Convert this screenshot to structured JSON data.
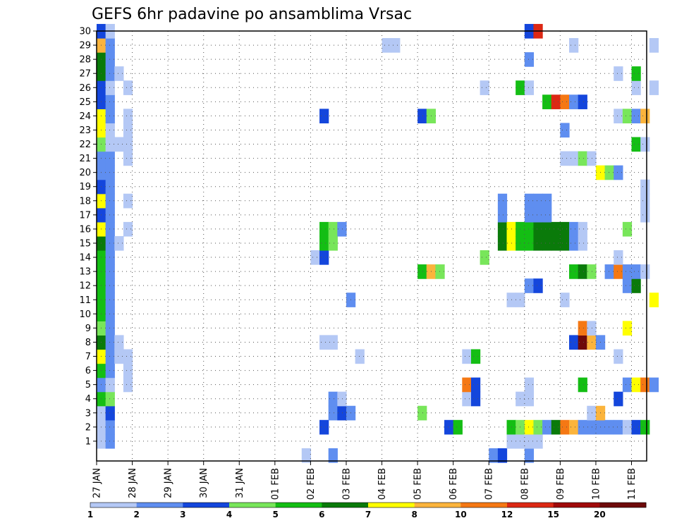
{
  "chart_data": {
    "type": "heatmap",
    "title": "GEFS 6hr padavine po ansamblima Vrsac",
    "y_ticks": [
      "1",
      "2",
      "3",
      "4",
      "5",
      "6",
      "7",
      "8",
      "9",
      "10",
      "11",
      "12",
      "13",
      "14",
      "15",
      "16",
      "17",
      "18",
      "19",
      "20",
      "21",
      "22",
      "23",
      "24",
      "25",
      "26",
      "27",
      "28",
      "29",
      "30"
    ],
    "x_ticks": [
      "27 JAN",
      "28 JAN",
      "29 JAN",
      "30 JAN",
      "31 JAN",
      "01 FEB",
      "02 FEB",
      "03 FEB",
      "04 FEB",
      "05 FEB",
      "06 FEB",
      "07 FEB",
      "08 FEB",
      "09 FEB",
      "10 FEB",
      "11 FEB"
    ],
    "x_range": [
      0,
      60
    ],
    "y_range": [
      0,
      30
    ],
    "colorbar": {
      "labels": [
        "1",
        "2",
        "3",
        "4",
        "5",
        "6",
        "7",
        "8",
        "10",
        "12",
        "15",
        "20"
      ],
      "colors": [
        "#b4c8f5",
        "#5f8ef0",
        "#1446dc",
        "#78e65a",
        "#14be14",
        "#0a7a0a",
        "#ffff00",
        "#fbb43c",
        "#f57814",
        "#dc2814",
        "#a00a0a",
        "#6e0a0a"
      ]
    },
    "cells": [
      [
        0,
        1,
        1
      ],
      [
        0,
        2,
        1
      ],
      [
        0,
        3,
        1
      ],
      [
        0,
        4,
        5
      ],
      [
        0,
        5,
        2
      ],
      [
        0,
        6,
        5
      ],
      [
        0,
        7,
        7
      ],
      [
        0,
        8,
        6
      ],
      [
        0,
        9,
        4
      ],
      [
        0,
        10,
        5
      ],
      [
        0,
        11,
        5
      ],
      [
        0,
        12,
        5
      ],
      [
        0,
        13,
        5
      ],
      [
        0,
        14,
        5
      ],
      [
        0,
        15,
        6
      ],
      [
        0,
        16,
        7
      ],
      [
        0,
        17,
        3
      ],
      [
        0,
        18,
        7
      ],
      [
        0,
        19,
        3
      ],
      [
        0,
        20,
        2
      ],
      [
        0,
        21,
        2
      ],
      [
        0,
        22,
        4
      ],
      [
        0,
        23,
        7
      ],
      [
        0,
        24,
        7
      ],
      [
        0,
        25,
        3
      ],
      [
        0,
        26,
        3
      ],
      [
        0,
        27,
        6
      ],
      [
        0,
        28,
        6
      ],
      [
        0,
        29,
        8
      ],
      [
        0,
        30,
        3
      ],
      [
        1,
        1,
        2
      ],
      [
        1,
        2,
        2
      ],
      [
        1,
        3,
        3
      ],
      [
        1,
        4,
        4
      ],
      [
        1,
        5,
        1
      ],
      [
        1,
        6,
        2
      ],
      [
        1,
        7,
        2
      ],
      [
        1,
        8,
        2
      ],
      [
        1,
        9,
        2
      ],
      [
        1,
        10,
        2
      ],
      [
        1,
        11,
        2
      ],
      [
        1,
        12,
        2
      ],
      [
        1,
        13,
        2
      ],
      [
        1,
        14,
        2
      ],
      [
        1,
        15,
        2
      ],
      [
        1,
        16,
        2
      ],
      [
        1,
        17,
        2
      ],
      [
        1,
        18,
        2
      ],
      [
        1,
        19,
        2
      ],
      [
        1,
        20,
        2
      ],
      [
        1,
        21,
        2
      ],
      [
        1,
        22,
        1
      ],
      [
        1,
        23,
        1
      ],
      [
        1,
        24,
        2
      ],
      [
        1,
        25,
        2
      ],
      [
        1,
        26,
        1
      ],
      [
        1,
        27,
        2
      ],
      [
        1,
        28,
        2
      ],
      [
        1,
        29,
        2
      ],
      [
        1,
        30,
        1
      ],
      [
        2,
        7,
        1
      ],
      [
        2,
        8,
        1
      ],
      [
        2,
        15,
        1
      ],
      [
        2,
        22,
        1
      ],
      [
        2,
        27,
        1
      ],
      [
        3,
        5,
        1
      ],
      [
        3,
        6,
        1
      ],
      [
        3,
        7,
        1
      ],
      [
        3,
        16,
        1
      ],
      [
        3,
        18,
        1
      ],
      [
        3,
        21,
        1
      ],
      [
        3,
        22,
        1
      ],
      [
        3,
        23,
        1
      ],
      [
        3,
        24,
        1
      ],
      [
        3,
        26,
        1
      ],
      [
        23,
        0,
        1
      ],
      [
        24,
        14,
        1
      ],
      [
        25,
        2,
        3
      ],
      [
        25,
        8,
        1
      ],
      [
        25,
        14,
        3
      ],
      [
        25,
        15,
        5
      ],
      [
        25,
        16,
        5
      ],
      [
        25,
        24,
        3
      ],
      [
        26,
        0,
        2
      ],
      [
        26,
        3,
        2
      ],
      [
        26,
        4,
        2
      ],
      [
        26,
        8,
        1
      ],
      [
        26,
        15,
        4
      ],
      [
        26,
        16,
        4
      ],
      [
        27,
        3,
        3
      ],
      [
        27,
        4,
        1
      ],
      [
        27,
        16,
        2
      ],
      [
        28,
        3,
        2
      ],
      [
        28,
        11,
        2
      ],
      [
        29,
        7,
        1
      ],
      [
        32,
        29,
        1
      ],
      [
        33,
        29,
        1
      ],
      [
        36,
        3,
        4
      ],
      [
        36,
        13,
        5
      ],
      [
        36,
        24,
        3
      ],
      [
        37,
        13,
        8
      ],
      [
        37,
        24,
        4
      ],
      [
        38,
        13,
        4
      ],
      [
        39,
        2,
        3
      ],
      [
        40,
        2,
        5
      ],
      [
        41,
        4,
        1
      ],
      [
        41,
        5,
        9
      ],
      [
        41,
        7,
        1
      ],
      [
        42,
        4,
        3
      ],
      [
        42,
        5,
        3
      ],
      [
        42,
        7,
        5
      ],
      [
        43,
        14,
        4
      ],
      [
        43,
        26,
        1
      ],
      [
        44,
        0,
        2
      ],
      [
        45,
        0,
        3
      ],
      [
        45,
        15,
        6
      ],
      [
        45,
        16,
        6
      ],
      [
        45,
        17,
        2
      ],
      [
        45,
        18,
        2
      ],
      [
        46,
        1,
        1
      ],
      [
        46,
        2,
        5
      ],
      [
        46,
        15,
        7
      ],
      [
        46,
        16,
        7
      ],
      [
        46,
        11,
        1
      ],
      [
        47,
        1,
        1
      ],
      [
        47,
        2,
        4
      ],
      [
        47,
        4,
        1
      ],
      [
        47,
        11,
        1
      ],
      [
        47,
        15,
        5
      ],
      [
        47,
        16,
        5
      ],
      [
        47,
        26,
        5
      ],
      [
        48,
        0,
        2
      ],
      [
        48,
        1,
        1
      ],
      [
        48,
        2,
        7
      ],
      [
        48,
        4,
        1
      ],
      [
        48,
        5,
        1
      ],
      [
        48,
        12,
        2
      ],
      [
        48,
        15,
        5
      ],
      [
        48,
        16,
        5
      ],
      [
        48,
        18,
        2
      ],
      [
        48,
        17,
        2
      ],
      [
        48,
        26,
        1
      ],
      [
        48,
        28,
        2
      ],
      [
        48,
        30,
        3
      ],
      [
        49,
        1,
        1
      ],
      [
        49,
        2,
        4
      ],
      [
        49,
        12,
        3
      ],
      [
        49,
        15,
        6
      ],
      [
        49,
        16,
        6
      ],
      [
        49,
        17,
        2
      ],
      [
        49,
        18,
        2
      ],
      [
        49,
        30,
        10
      ],
      [
        50,
        2,
        2
      ],
      [
        50,
        15,
        6
      ],
      [
        50,
        16,
        6
      ],
      [
        50,
        17,
        2
      ],
      [
        50,
        18,
        2
      ],
      [
        50,
        25,
        5
      ],
      [
        51,
        2,
        6
      ],
      [
        51,
        15,
        6
      ],
      [
        51,
        16,
        6
      ],
      [
        51,
        25,
        10
      ],
      [
        52,
        2,
        9
      ],
      [
        52,
        11,
        1
      ],
      [
        52,
        15,
        6
      ],
      [
        52,
        16,
        6
      ],
      [
        52,
        21,
        1
      ],
      [
        52,
        23,
        2
      ],
      [
        52,
        25,
        9
      ],
      [
        53,
        2,
        8
      ],
      [
        53,
        8,
        3
      ],
      [
        53,
        13,
        5
      ],
      [
        53,
        15,
        2
      ],
      [
        53,
        16,
        2
      ],
      [
        53,
        21,
        1
      ],
      [
        53,
        25,
        2
      ],
      [
        53,
        29,
        1
      ],
      [
        54,
        2,
        2
      ],
      [
        54,
        5,
        5
      ],
      [
        54,
        8,
        12
      ],
      [
        54,
        9,
        9
      ],
      [
        54,
        13,
        6
      ],
      [
        54,
        15,
        1
      ],
      [
        54,
        16,
        1
      ],
      [
        54,
        21,
        4
      ],
      [
        54,
        25,
        3
      ],
      [
        55,
        2,
        2
      ],
      [
        55,
        3,
        1
      ],
      [
        55,
        8,
        8
      ],
      [
        55,
        9,
        1
      ],
      [
        55,
        13,
        4
      ],
      [
        55,
        21,
        1
      ],
      [
        56,
        2,
        2
      ],
      [
        56,
        3,
        8
      ],
      [
        56,
        8,
        2
      ],
      [
        56,
        20,
        7
      ],
      [
        57,
        2,
        2
      ],
      [
        57,
        13,
        2
      ],
      [
        57,
        20,
        4
      ],
      [
        58,
        2,
        2
      ],
      [
        58,
        4,
        3
      ],
      [
        58,
        7,
        1
      ],
      [
        58,
        13,
        9
      ],
      [
        58,
        14,
        1
      ],
      [
        58,
        20,
        2
      ],
      [
        58,
        24,
        1
      ],
      [
        58,
        27,
        1
      ],
      [
        59,
        2,
        1
      ],
      [
        59,
        5,
        2
      ],
      [
        59,
        9,
        7
      ],
      [
        59,
        12,
        2
      ],
      [
        59,
        13,
        2
      ],
      [
        59,
        16,
        4
      ],
      [
        59,
        24,
        4
      ],
      [
        60,
        2,
        3
      ],
      [
        60,
        5,
        7
      ],
      [
        60,
        12,
        6
      ],
      [
        60,
        13,
        2
      ],
      [
        60,
        22,
        5
      ],
      [
        60,
        24,
        2
      ],
      [
        60,
        26,
        1
      ],
      [
        60,
        27,
        5
      ],
      [
        61,
        2,
        5
      ],
      [
        61,
        5,
        9
      ],
      [
        61,
        13,
        1
      ],
      [
        61,
        18,
        1
      ],
      [
        61,
        17,
        1
      ],
      [
        61,
        19,
        1
      ],
      [
        61,
        22,
        1
      ],
      [
        61,
        24,
        8
      ],
      [
        62,
        5,
        2
      ],
      [
        62,
        11,
        7
      ],
      [
        62,
        26,
        1
      ],
      [
        62,
        29,
        1
      ]
    ]
  }
}
